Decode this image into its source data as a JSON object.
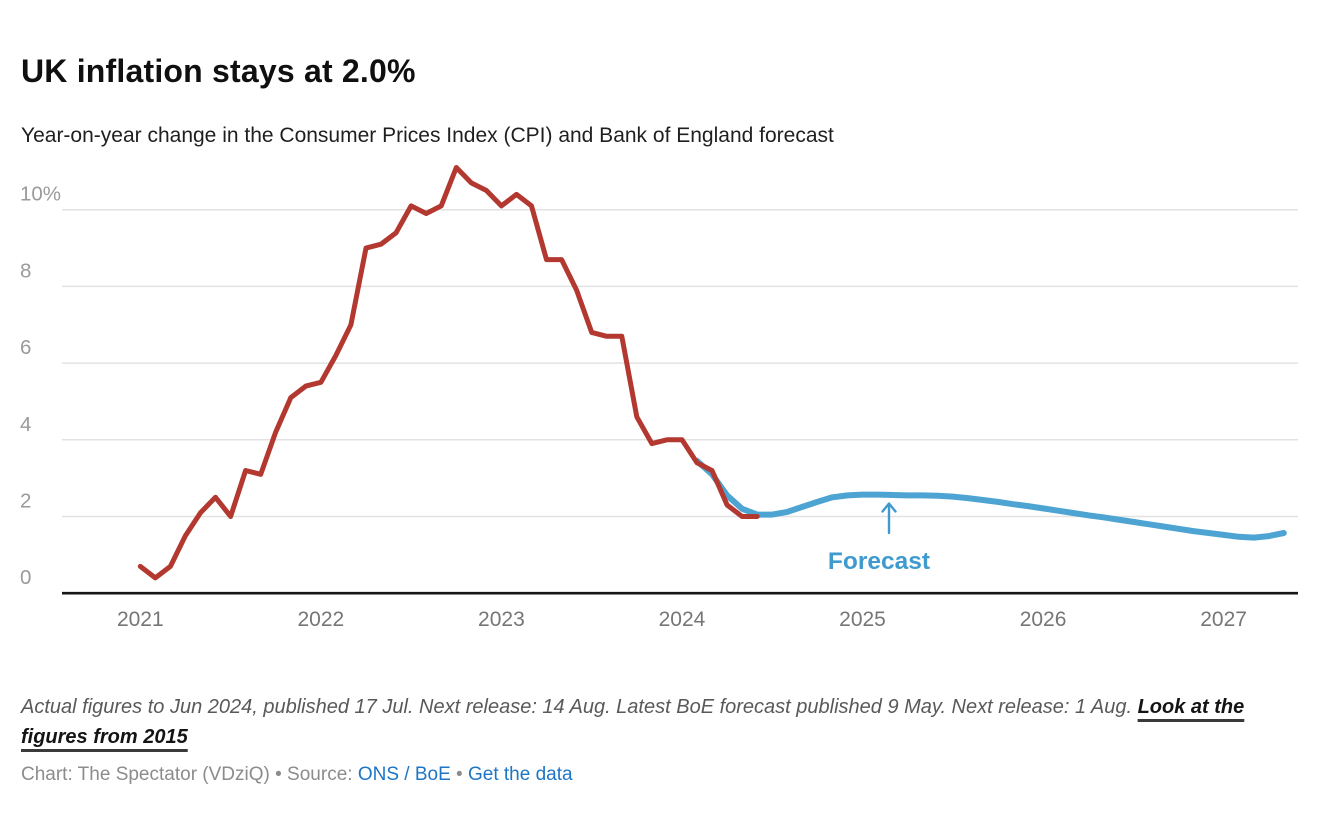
{
  "header": {
    "title": "UK inflation stays at 2.0%",
    "subtitle": "Year-on-year change in the Consumer Prices Index (CPI) and Bank of England forecast"
  },
  "chart_data": {
    "type": "line",
    "title": "UK inflation stays at 2.0%",
    "xlabel": "",
    "ylabel": "",
    "x_unit": "months, starting Jan 2021",
    "x_tick_labels": [
      "2021",
      "2022",
      "2023",
      "2024",
      "2025",
      "2026",
      "2027"
    ],
    "y_ticks": [
      0,
      2,
      4,
      6,
      8,
      10
    ],
    "y_tick_labels": [
      "0",
      "2",
      "4",
      "6",
      "8",
      "10%"
    ],
    "ylim": [
      0,
      11.6
    ],
    "grid": "horizontal",
    "legend_position": "none",
    "series": [
      {
        "name": "Bank of England forecast",
        "color": "#4da4d2",
        "start_month": 37,
        "values": [
          3.45,
          3.1,
          2.55,
          2.2,
          2.05,
          2.05,
          2.12,
          2.25,
          2.38,
          2.5,
          2.55,
          2.57,
          2.57,
          2.56,
          2.55,
          2.55,
          2.54,
          2.52,
          2.48,
          2.43,
          2.38,
          2.32,
          2.27,
          2.21,
          2.15,
          2.09,
          2.03,
          1.98,
          1.92,
          1.86,
          1.8,
          1.74,
          1.68,
          1.62,
          1.57,
          1.52,
          1.47,
          1.45,
          1.49,
          1.57
        ]
      },
      {
        "name": "CPI year-on-year change (actual)",
        "color": "#b23830",
        "start_month": 0,
        "values": [
          0.7,
          0.4,
          0.7,
          1.5,
          2.1,
          2.5,
          2.0,
          3.2,
          3.1,
          4.2,
          5.1,
          5.4,
          5.5,
          6.2,
          7.0,
          9.0,
          9.1,
          9.4,
          10.1,
          9.9,
          10.1,
          11.1,
          10.7,
          10.5,
          10.1,
          10.4,
          10.1,
          8.7,
          8.7,
          7.9,
          6.8,
          6.7,
          6.7,
          4.6,
          3.9,
          4.0,
          4.0,
          3.4,
          3.2,
          2.3,
          2.0,
          2.0
        ]
      }
    ],
    "annotation": {
      "label": "Forecast",
      "color": "#3f9bcd"
    },
    "colors": {
      "actual_line": "#b23830",
      "forecast_line": "#4da4d2",
      "gridline": "#e2e2e2",
      "baseline": "#161616",
      "y_tick_text": "#9a9a9a",
      "x_tick_text": "#767676"
    }
  },
  "footer": {
    "notes": "Actual figures to Jun 2024, published 17 Jul. Next release: 14 Aug. Latest BoE forecast published 9 May. Next release: 1 Aug. ",
    "notes_link": "Look at the figures from 2015",
    "byline_prefix": "Chart: The Spectator (VDziQ) • Source: ",
    "source_link": "ONS / BoE",
    "separator": " • ",
    "data_link": "Get the data"
  }
}
